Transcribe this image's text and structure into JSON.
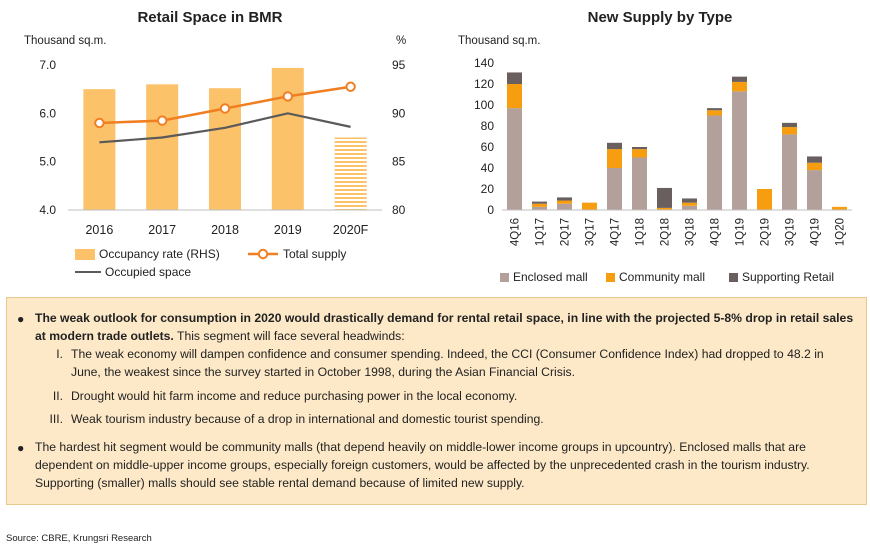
{
  "left_chart": {
    "title": "Retail Space in BMR",
    "left_unit": "Thousand sq.m.",
    "right_unit": "%",
    "chart_data": {
      "type": "bar",
      "title": "Retail Space in BMR",
      "categories": [
        "2016",
        "2017",
        "2018",
        "2019",
        "2020F"
      ],
      "y_left": {
        "ylim": [
          4.0,
          7.0
        ],
        "ticks": [
          "4.0",
          "5.0",
          "6.0",
          "7.0"
        ]
      },
      "y_right": {
        "ylim": [
          80,
          95
        ],
        "ticks": [
          "80",
          "85",
          "90",
          "95"
        ]
      },
      "series": [
        {
          "name": "Occupancy rate (RHS)",
          "kind": "bar",
          "axis": "right",
          "color": "#fbc26a",
          "values": [
            92.5,
            93.0,
            92.6,
            94.7,
            87.5
          ]
        },
        {
          "name": "Total supply",
          "kind": "line-marker",
          "axis": "left",
          "color": "#f07f22",
          "values": [
            5.8,
            5.85,
            6.1,
            6.35,
            6.55
          ]
        },
        {
          "name": "Occupied space",
          "kind": "line",
          "axis": "left",
          "color": "#5a5a5a",
          "values": [
            5.4,
            5.5,
            5.7,
            6.0,
            5.72
          ]
        }
      ]
    }
  },
  "right_chart": {
    "title": "New Supply by Type",
    "unit": "Thousand sq.m.",
    "chart_data": {
      "type": "bar",
      "stacked": true,
      "title": "New Supply by Type",
      "categories": [
        "4Q16",
        "1Q17",
        "2Q17",
        "3Q17",
        "4Q17",
        "1Q18",
        "2Q18",
        "3Q18",
        "4Q18",
        "1Q19",
        "2Q19",
        "3Q19",
        "4Q19",
        "1Q20"
      ],
      "ylim": [
        0,
        140
      ],
      "ticks": [
        "0",
        "20",
        "40",
        "60",
        "80",
        "100",
        "120",
        "140"
      ],
      "series": [
        {
          "name": "Enclosed mall",
          "color": "#b3a09b",
          "values": [
            97,
            3,
            6,
            0,
            40,
            50,
            0,
            4,
            90,
            113,
            0,
            72,
            38,
            0
          ]
        },
        {
          "name": "Community mall",
          "color": "#f79d10",
          "values": [
            23,
            3,
            3,
            7,
            18,
            8,
            2,
            3,
            5,
            9,
            20,
            7,
            7,
            3
          ]
        },
        {
          "name": "Supporting Retail",
          "color": "#6a5f5f",
          "values": [
            11,
            2,
            3,
            0,
            6,
            2,
            19,
            4,
            2,
            5,
            0,
            4,
            6,
            0
          ]
        }
      ]
    }
  },
  "box": {
    "bullet1_bold": "The weak outlook for consumption in 2020 would drastically demand for rental retail space, in line with the projected 5-8% drop in retail sales at modern trade outlets.",
    "bullet1_rest": " This segment will face several headwinds:",
    "subitems": [
      {
        "num": "I.",
        "text": "The weak economy will dampen confidence and consumer spending. Indeed, the CCI (Consumer Confidence Index) had dropped to 48.2 in June, the weakest since the survey started in October 1998, during the Asian Financial Crisis."
      },
      {
        "num": "II.",
        "text": "Drought would hit farm income and reduce purchasing power in the local economy."
      },
      {
        "num": "III.",
        "text": "Weak tourism industry because of a drop in international and domestic tourist spending."
      }
    ],
    "bullet2": "The hardest hit segment would be community malls (that depend heavily on middle-lower income groups in upcountry). Enclosed malls that are dependent on middle-upper income groups, especially foreign customers, would be affected by the unprecedented crash in the tourism industry. Supporting (smaller) malls should see stable rental demand because of limited new supply."
  },
  "source": "Source: CBRE, Krungsri Research"
}
